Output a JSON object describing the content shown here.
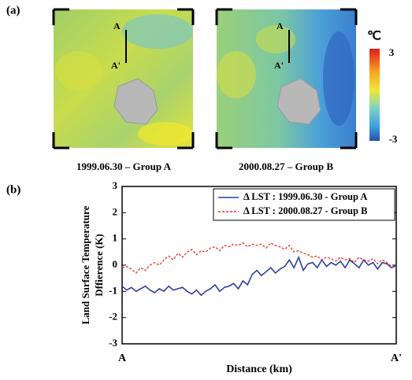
{
  "panel_a": {
    "label": "(a)",
    "maps": [
      {
        "caption": "1999.06.30 – Group A",
        "start": "A",
        "end": "A'"
      },
      {
        "caption": "2000.08.27 – Group B",
        "start": "A",
        "end": "A'"
      }
    ],
    "colorbar": {
      "unit": "℃",
      "ticks": [
        3,
        -3
      ]
    }
  },
  "chart_data": {
    "type": "line",
    "panel_label": "(b)",
    "ylabel": [
      "Land Surface Temperature",
      "Dffierence (K)"
    ],
    "xlabel": "Distance (km)",
    "xlim": [
      0,
      1
    ],
    "xticks": [
      {
        "value": 0,
        "label": "A"
      },
      {
        "value": 1,
        "label": "A'"
      }
    ],
    "ylim": [
      -3,
      3
    ],
    "yticks": [
      3,
      2,
      1,
      0,
      -1,
      -2,
      -3
    ],
    "legend": "upper-right",
    "series": [
      {
        "name": "Δ LST : 1999.06.30 - Group A",
        "color": "#2e3f9e",
        "style": "solid",
        "values": [
          -0.8,
          -0.95,
          -0.85,
          -1.0,
          -0.9,
          -0.8,
          -0.95,
          -1.05,
          -0.9,
          -1.0,
          -0.8,
          -0.95,
          -0.9,
          -0.85,
          -1.0,
          -1.1,
          -0.95,
          -1.15,
          -1.0,
          -0.9,
          -0.75,
          -1.0,
          -0.85,
          -0.8,
          -0.7,
          -0.9,
          -0.6,
          -0.75,
          -0.35,
          -0.2,
          -0.4,
          -0.25,
          -0.1,
          -0.3,
          -0.15,
          -0.05,
          0.2,
          -0.1,
          0.3,
          -0.2,
          0.05,
          0.1,
          -0.1,
          0.2,
          -0.05,
          0.1,
          0.0,
          0.15,
          -0.1,
          0.2,
          0.05,
          -0.1,
          0.2,
          0.0,
          0.1,
          -0.15,
          0.1,
          0.05,
          -0.1,
          0.0
        ]
      },
      {
        "name": "Δ LST : 2000.08.27 - Group B",
        "color": "#e8322c",
        "style": "dashed",
        "values": [
          -0.1,
          -0.05,
          -0.15,
          -0.3,
          -0.1,
          -0.2,
          0.0,
          0.1,
          0.0,
          0.2,
          0.35,
          0.2,
          0.45,
          0.3,
          0.5,
          0.6,
          0.4,
          0.55,
          0.5,
          0.65,
          0.7,
          0.55,
          0.75,
          0.7,
          0.8,
          0.75,
          0.85,
          0.7,
          0.8,
          0.75,
          0.8,
          0.65,
          0.85,
          0.75,
          0.7,
          0.6,
          0.75,
          0.5,
          0.55,
          0.45,
          0.4,
          0.3,
          0.35,
          0.2,
          0.3,
          0.25,
          0.15,
          0.3,
          0.2,
          0.25,
          0.1,
          0.3,
          0.2,
          0.15,
          0.25,
          0.05,
          0.2,
          0.1,
          -0.05,
          -0.1
        ]
      }
    ]
  }
}
